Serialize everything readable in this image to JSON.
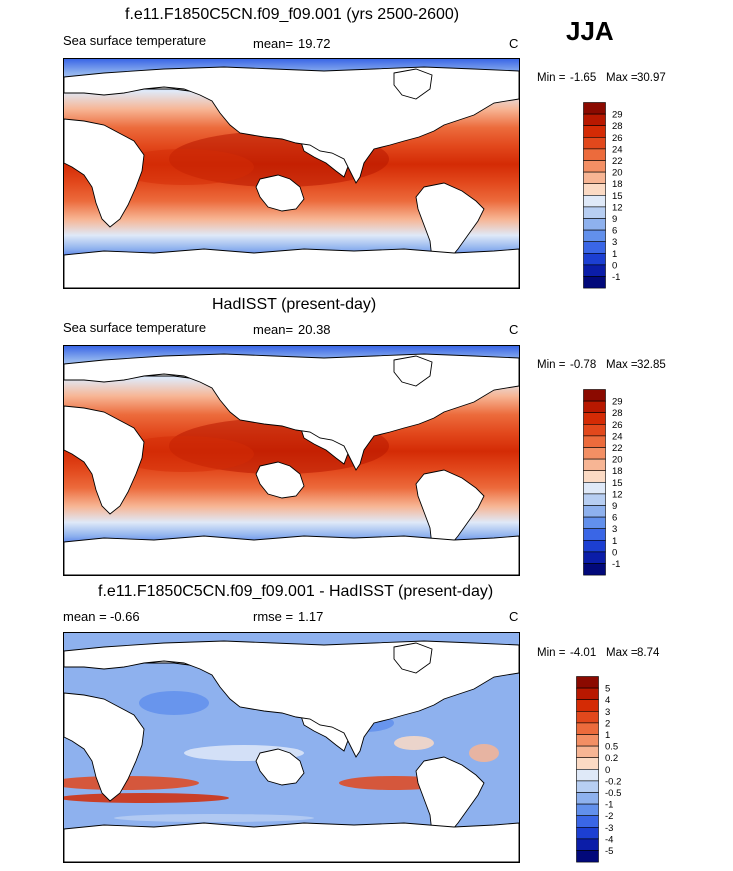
{
  "season": "JJA",
  "units": "C",
  "panels": [
    {
      "id": "model",
      "title": "f.e11.F1850C5CN.f09_f09.001 (yrs 2500-2600)",
      "variable": "Sea surface temperature",
      "stat_label": "mean=",
      "stat_value": "19.72",
      "min_label": "Min =",
      "min_value": "-1.65",
      "max_label": "Max =",
      "max_value": "30.97",
      "units": "C"
    },
    {
      "id": "obs",
      "title": "HadISST (present-day)",
      "variable": "Sea surface temperature",
      "stat_label": "mean=",
      "stat_value": "20.38",
      "min_label": "Min =",
      "min_value": "-0.78",
      "max_label": "Max =",
      "max_value": "32.85",
      "units": "C"
    },
    {
      "id": "diff",
      "title": "f.e11.F1850C5CN.f09_f09.001 - HadISST (present-day)",
      "mean_label": "mean =",
      "mean_value": "-0.66",
      "rmse_label": "rmse =",
      "rmse_value": "1.17",
      "min_label": "Min =",
      "min_value": "-4.01",
      "max_label": "Max =",
      "max_value": "8.74",
      "units": "C"
    }
  ],
  "chart_data": [
    {
      "type": "heatmap",
      "title": "f.e11.F1850C5CN.f09_f09.001 (yrs 2500-2600)",
      "subtitle": "Sea surface temperature",
      "mean": 19.72,
      "min": -1.65,
      "max": 30.97,
      "units": "C",
      "colorbar_levels": [
        "29",
        "28",
        "26",
        "24",
        "22",
        "20",
        "18",
        "15",
        "12",
        "9",
        "6",
        "3",
        "1",
        "0",
        "-1"
      ],
      "colorbar_colors": [
        "#8b0a00",
        "#b81800",
        "#d42b05",
        "#e2481c",
        "#ec6b3c",
        "#f38f64",
        "#f7b594",
        "#fbdac4",
        "#dfe9f8",
        "#b7cef2",
        "#8eb1ee",
        "#6290ec",
        "#3a66e6",
        "#1c3fd2",
        "#0b1da8",
        "#02097a"
      ]
    },
    {
      "type": "heatmap",
      "title": "HadISST (present-day)",
      "subtitle": "Sea surface temperature",
      "mean": 20.38,
      "min": -0.78,
      "max": 32.85,
      "units": "C",
      "colorbar_levels": [
        "29",
        "28",
        "26",
        "24",
        "22",
        "20",
        "18",
        "15",
        "12",
        "9",
        "6",
        "3",
        "1",
        "0",
        "-1"
      ],
      "colorbar_colors": [
        "#8b0a00",
        "#b81800",
        "#d42b05",
        "#e2481c",
        "#ec6b3c",
        "#f38f64",
        "#f7b594",
        "#fbdac4",
        "#dfe9f8",
        "#b7cef2",
        "#8eb1ee",
        "#6290ec",
        "#3a66e6",
        "#1c3fd2",
        "#0b1da8",
        "#02097a"
      ]
    },
    {
      "type": "heatmap",
      "title": "f.e11.F1850C5CN.f09_f09.001 - HadISST (present-day)",
      "mean": -0.66,
      "rmse": 1.17,
      "min": -4.01,
      "max": 8.74,
      "units": "C",
      "colorbar_levels": [
        "5",
        "4",
        "3",
        "2",
        "1",
        "0.5",
        "0.2",
        "0",
        "-0.2",
        "-0.5",
        "-1",
        "-2",
        "-3",
        "-4",
        "-5"
      ],
      "colorbar_colors": [
        "#8b0a00",
        "#b81800",
        "#d42b05",
        "#e2481c",
        "#ec6b3c",
        "#f38f64",
        "#f7b594",
        "#fbdac4",
        "#dfe9f8",
        "#b7cef2",
        "#8eb1ee",
        "#6290ec",
        "#3a66e6",
        "#1c3fd2",
        "#0b1da8",
        "#02097a"
      ]
    }
  ]
}
